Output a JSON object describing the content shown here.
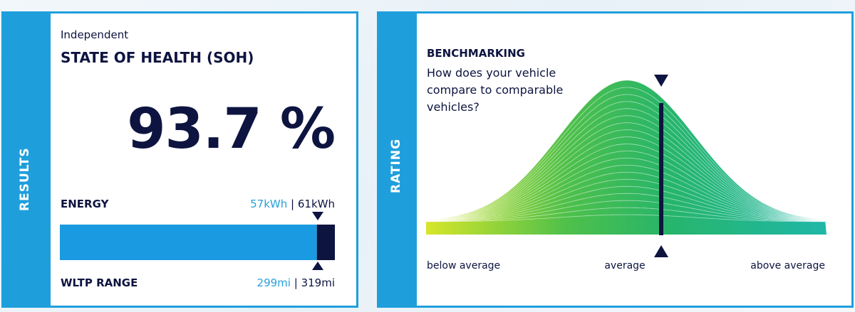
{
  "results": {
    "tab": "RESULTS",
    "subtitle": "Independent",
    "title": "STATE OF HEALTH (SOH)",
    "soh": "93.7 %",
    "energy": {
      "label": "ENERGY",
      "current": {
        "value": 57,
        "label": "57kWh"
      },
      "separator": "|",
      "total": {
        "value": 61,
        "label": "61kWh"
      }
    },
    "range": {
      "label": "WLTP RANGE",
      "current": {
        "value": 299,
        "label": "299mi"
      },
      "separator": "|",
      "total": {
        "value": 319,
        "label": "319mi"
      }
    }
  },
  "rating": {
    "tab": "RATING",
    "title": "BENCHMARKING",
    "question": "How does your vehicle compare to comparable vehicles?",
    "scale": [
      "below average",
      "average",
      "above average"
    ]
  }
}
